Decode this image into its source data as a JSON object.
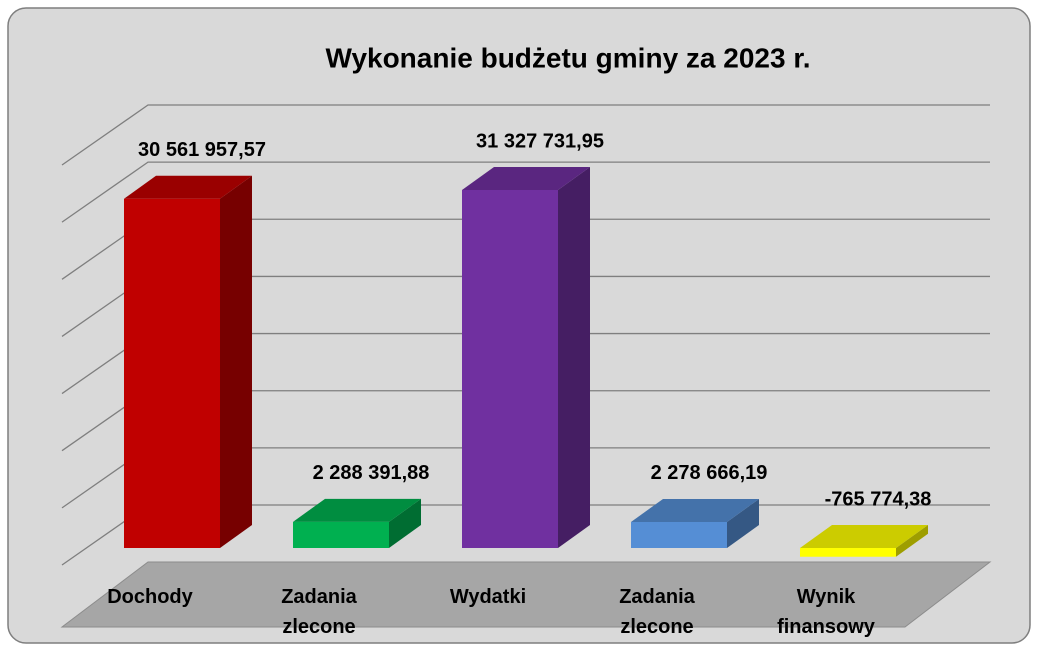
{
  "chart_data": {
    "type": "bar3d",
    "title": "Wykonanie budżetu gminy za 2023 r.",
    "categories": [
      "Dochody",
      "Zadania zlecone",
      "Wydatki",
      "Zadania zlecone",
      "Wynik finansowy"
    ],
    "values": [
      30561957.57,
      2288391.88,
      31327731.95,
      2278666.19,
      -765774.38
    ],
    "value_labels": [
      "30 561 957,57",
      "2 288 391,88",
      "31 327 731,95",
      "2 278 666,19",
      "-765 774,38"
    ],
    "colors": [
      "#c00000",
      "#00b050",
      "#7030a0",
      "#558ed5",
      "#ffff00"
    ],
    "ylim": [
      0,
      35000000
    ],
    "yticks": [
      0,
      5000000,
      10000000,
      15000000,
      20000000,
      25000000,
      30000000,
      35000000
    ],
    "grid": true
  }
}
